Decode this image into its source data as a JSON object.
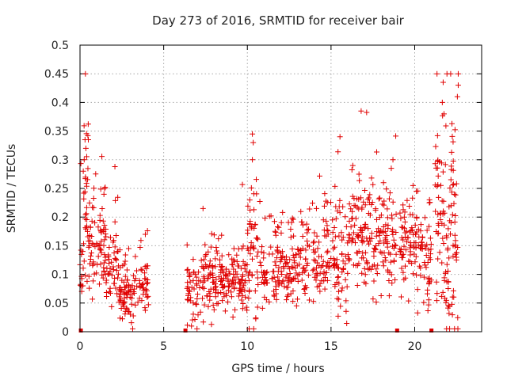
{
  "chart_data": {
    "type": "scatter",
    "title": "Day 273 of 2016, SRMTID for receiver bair",
    "xlabel": "GPS time / hours",
    "ylabel": "SRMTID / TECUs",
    "xlim": [
      0,
      24
    ],
    "ylim": [
      0,
      0.5
    ],
    "x_ticks": [
      0,
      5,
      10,
      15,
      20
    ],
    "x_tick_labels": [
      "0",
      "5",
      "10",
      "15",
      "20"
    ],
    "y_ticks": [
      0,
      0.05,
      0.1,
      0.15,
      0.2,
      0.25,
      0.3,
      0.35,
      0.4,
      0.45,
      0.5
    ],
    "y_tick_labels": [
      "0",
      "0.05",
      "0.1",
      "0.15",
      "0.2",
      "0.25",
      "0.3",
      "0.35",
      "0.4",
      "0.45",
      "0.5"
    ],
    "grid": true,
    "marker": "plus",
    "color": "#e00000",
    "zero_markers_x": [
      0.05,
      6.3,
      18.95,
      21.0
    ],
    "density_profile": [
      {
        "x0": 0.0,
        "x1": 0.2,
        "center": 0.12,
        "spread": 0.05,
        "n": 14
      },
      {
        "x0": 0.2,
        "x1": 0.5,
        "center": 0.22,
        "spread": 0.1,
        "n": 30
      },
      {
        "x0": 0.5,
        "x1": 1.5,
        "center": 0.15,
        "spread": 0.05,
        "n": 70
      },
      {
        "x0": 1.5,
        "x1": 2.4,
        "center": 0.11,
        "spread": 0.05,
        "n": 60
      },
      {
        "x0": 2.4,
        "x1": 3.3,
        "center": 0.065,
        "spread": 0.03,
        "n": 65
      },
      {
        "x0": 3.3,
        "x1": 4.1,
        "center": 0.075,
        "spread": 0.03,
        "n": 45
      },
      {
        "x0": 6.4,
        "x1": 7.2,
        "center": 0.07,
        "spread": 0.045,
        "n": 45
      },
      {
        "x0": 7.2,
        "x1": 8.5,
        "center": 0.09,
        "spread": 0.035,
        "n": 85
      },
      {
        "x0": 8.5,
        "x1": 10.0,
        "center": 0.085,
        "spread": 0.03,
        "n": 95
      },
      {
        "x0": 10.0,
        "x1": 10.6,
        "center": 0.14,
        "spread": 0.09,
        "n": 45
      },
      {
        "x0": 10.6,
        "x1": 12.5,
        "center": 0.1,
        "spread": 0.04,
        "n": 110
      },
      {
        "x0": 12.5,
        "x1": 14.5,
        "center": 0.12,
        "spread": 0.05,
        "n": 110
      },
      {
        "x0": 14.5,
        "x1": 16.0,
        "center": 0.13,
        "spread": 0.06,
        "n": 95
      },
      {
        "x0": 16.0,
        "x1": 17.5,
        "center": 0.17,
        "spread": 0.06,
        "n": 100
      },
      {
        "x0": 17.5,
        "x1": 18.9,
        "center": 0.15,
        "spread": 0.06,
        "n": 90
      },
      {
        "x0": 19.1,
        "x1": 20.4,
        "center": 0.15,
        "spread": 0.06,
        "n": 85
      },
      {
        "x0": 20.4,
        "x1": 21.0,
        "center": 0.12,
        "spread": 0.06,
        "n": 40
      },
      {
        "x0": 21.2,
        "x1": 21.7,
        "center": 0.2,
        "spread": 0.12,
        "n": 40
      },
      {
        "x0": 21.7,
        "x1": 22.1,
        "center": 0.12,
        "spread": 0.1,
        "n": 35
      },
      {
        "x0": 22.1,
        "x1": 22.6,
        "center": 0.2,
        "spread": 0.12,
        "n": 45
      }
    ],
    "notable_points": [
      {
        "x": 0.3,
        "y": 0.335
      },
      {
        "x": 0.35,
        "y": 0.32
      },
      {
        "x": 0.25,
        "y": 0.3
      },
      {
        "x": 10.3,
        "y": 0.345
      },
      {
        "x": 10.35,
        "y": 0.33
      },
      {
        "x": 10.3,
        "y": 0.3
      },
      {
        "x": 16.8,
        "y": 0.385
      },
      {
        "x": 21.7,
        "y": 0.435
      },
      {
        "x": 21.65,
        "y": 0.4
      },
      {
        "x": 21.75,
        "y": 0.38
      },
      {
        "x": 22.6,
        "y": 0.45
      },
      {
        "x": 22.6,
        "y": 0.43
      },
      {
        "x": 22.55,
        "y": 0.41
      },
      {
        "x": 7.35,
        "y": 0.215
      },
      {
        "x": 9.2,
        "y": 0.145
      },
      {
        "x": 18.7,
        "y": 0.3
      },
      {
        "x": 18.6,
        "y": 0.285
      },
      {
        "x": 19.9,
        "y": 0.255
      },
      {
        "x": 20.1,
        "y": 0.245
      }
    ]
  }
}
